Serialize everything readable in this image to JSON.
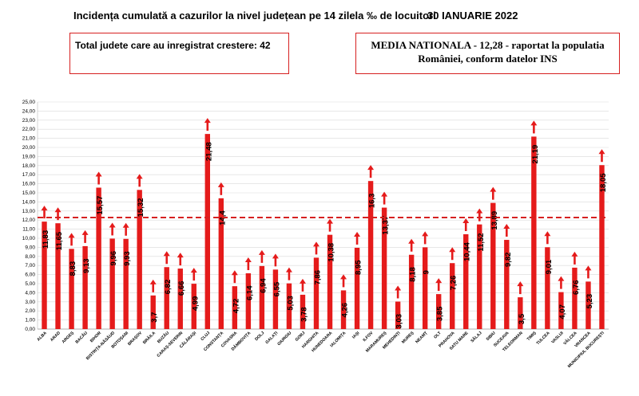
{
  "header": {
    "title": "Incidența cumulată a cazurilor la nivel județean pe 14 zilela ‰ de locuitori",
    "date": "30 IANUARIE 2022"
  },
  "info": {
    "counties_increase": "Total judete care au inregistrat crestere: 42",
    "national_average": "MEDIA NATIONALA - 12,28 - raportat la populatia României, conform datelor INS"
  },
  "colors": {
    "bar": "#e51b1b",
    "arrow": "#e51b1b",
    "average_line": "#d62020",
    "grid": "#d9d9d9"
  },
  "chart_data": {
    "type": "bar",
    "title": "",
    "xlabel": "",
    "ylabel": "",
    "ylim": [
      0,
      25
    ],
    "ytick_step": 1,
    "reference_line": 12.28,
    "categories": [
      "ALBA",
      "ARAD",
      "ARGEȘ",
      "BACĂU",
      "BIHOR",
      "BISTRIȚA-NĂSĂUD",
      "BOTOȘANI",
      "BRAȘOV",
      "BRĂILA",
      "BUZĂU",
      "CARAȘ-SEVERIN",
      "CĂLĂRAȘI",
      "CLUJ",
      "CONSTANȚA",
      "COVASNA",
      "DÂMBOVIȚA",
      "DOLJ",
      "GALAȚI",
      "GIURGIU",
      "GORJ",
      "HARGHITA",
      "HUNEDOARA",
      "IALOMIȚA",
      "IAȘI",
      "ILFOV",
      "MARAMUREȘ",
      "MEHEDINȚI",
      "MUREȘ",
      "NEAMȚ",
      "OLT",
      "PRAHOVA",
      "SATU MARE",
      "SĂLAJ",
      "SIBIU",
      "SUCEAVA",
      "TELEORMAN",
      "TIMIȘ",
      "TULCEA",
      "VASLUI",
      "VÂLCEA",
      "VRANCEA",
      "MUNICIPIUL BUCUREȘTI"
    ],
    "values": [
      11.83,
      11.65,
      8.83,
      9.13,
      15.57,
      9.96,
      9.93,
      15.32,
      3.7,
      6.82,
      6.66,
      4.99,
      21.48,
      14.4,
      4.72,
      6.14,
      6.94,
      6.55,
      5.03,
      3.78,
      7.86,
      10.38,
      4.26,
      8.95,
      16.3,
      13.37,
      3.03,
      8.18,
      9,
      3.85,
      7.26,
      10.44,
      11.52,
      13.89,
      9.82,
      3.5,
      21.19,
      9.01,
      4.07,
      6.76,
      5.23,
      18.05
    ],
    "value_labels": [
      "11,83",
      "11,65",
      "8,83",
      "9,13",
      "15,57",
      "9,96",
      "9,93",
      "15,32",
      "3,7",
      "6,82",
      "6,66",
      "4,99",
      "21,48",
      "14,4",
      "4,72",
      "6,14",
      "6,94",
      "6,55",
      "5,03",
      "3,78",
      "7,86",
      "10,38",
      "4,26",
      "8,95",
      "16,3",
      "13,37",
      "3,03",
      "8,18",
      "9",
      "3,85",
      "7,26",
      "10,44",
      "11,52",
      "13,89",
      "9,82",
      "3,5",
      "21,19",
      "9,01",
      "4,07",
      "6,76",
      "5,23",
      "18,05"
    ],
    "ytick_labels": [
      "0,00",
      "1,00",
      "2,00",
      "3,00",
      "4,00",
      "5,00",
      "6,00",
      "7,00",
      "8,00",
      "9,00",
      "10,00",
      "11,00",
      "12,00",
      "13,00",
      "14,00",
      "15,00",
      "16,00",
      "17,00",
      "18,00",
      "19,00",
      "20,00",
      "21,00",
      "22,00",
      "23,00",
      "24,00",
      "25,00"
    ],
    "trend": "increase"
  }
}
